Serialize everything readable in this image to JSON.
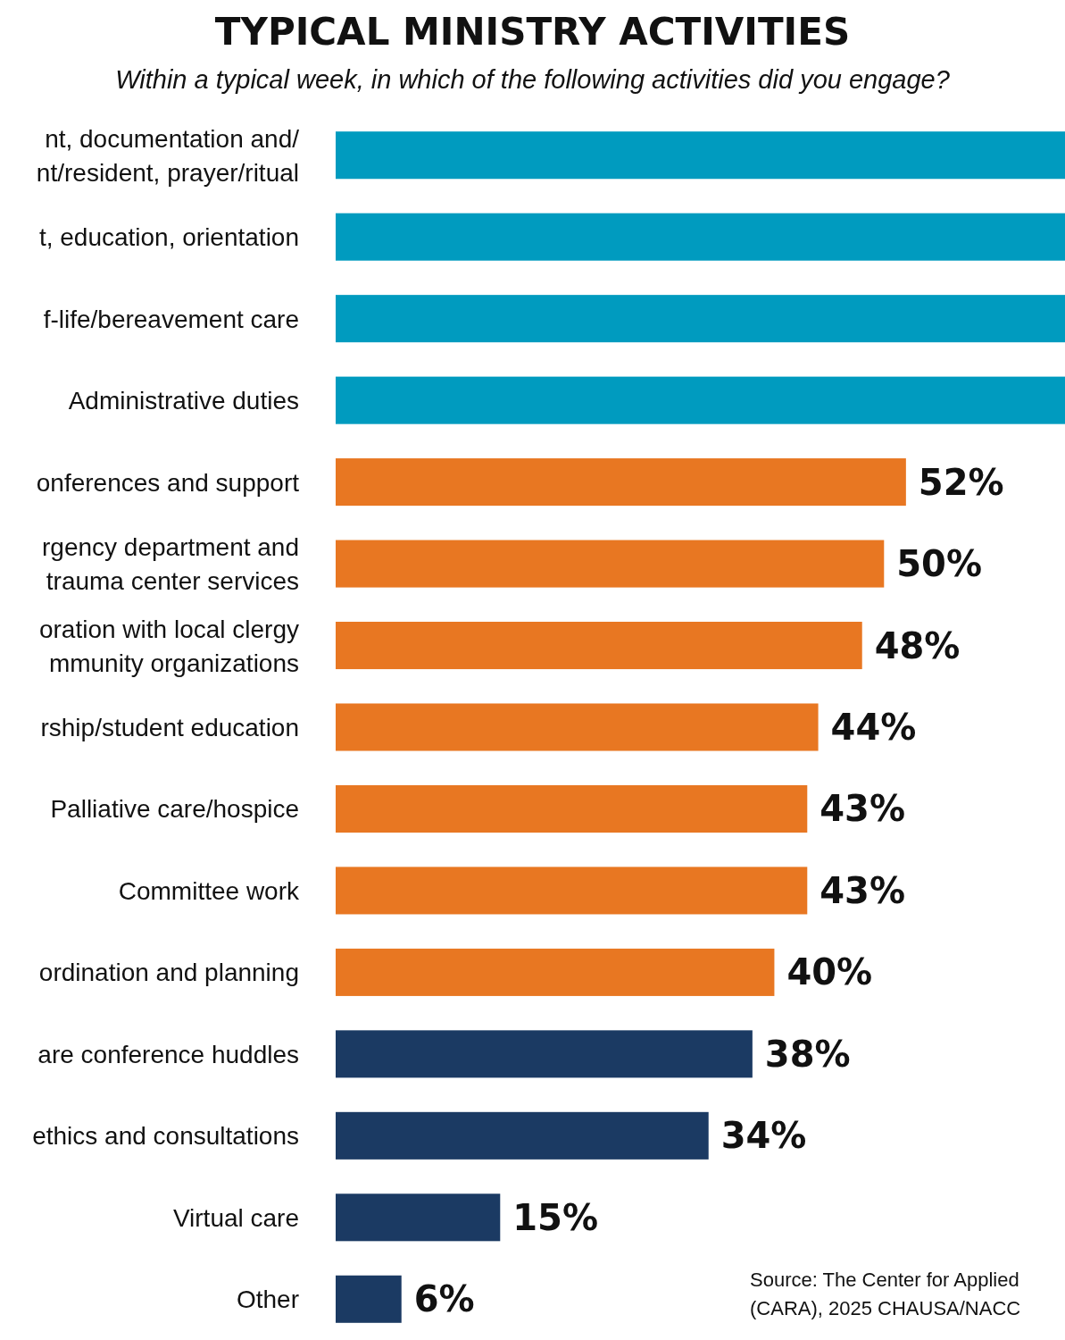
{
  "chart_data": {
    "type": "bar",
    "orientation": "horizontal",
    "title": "TYPICAL MINISTRY ACTIVITIES",
    "subtitle": "Within a typical week, in which of the following activities did you engage?",
    "categories": [
      "nt, documentation and/\nnt/resident, prayer/ritual",
      "t, education, orientation",
      "f-life/bereavement care",
      "Administrative duties",
      "onferences and support",
      "rgency department and\n trauma center services",
      "oration with local clergy\nmmunity organizations",
      "rship/student education",
      "Palliative care/hospice",
      "Committee work",
      "ordination and planning",
      "are conference huddles",
      "ethics and consultations",
      "Virtual care",
      "Other"
    ],
    "values": [
      66.5,
      66.5,
      66.5,
      66.5,
      52,
      50,
      48,
      44,
      43,
      43,
      40,
      38,
      34,
      15,
      6
    ],
    "value_labels": [
      null,
      null,
      null,
      null,
      "52%",
      "50%",
      "48%",
      "44%",
      "43%",
      "43%",
      "40%",
      "38%",
      "34%",
      "15%",
      "6%"
    ],
    "colors": [
      "#009bbf",
      "#009bbf",
      "#009bbf",
      "#009bbf",
      "#e87722",
      "#e87722",
      "#e87722",
      "#e87722",
      "#e87722",
      "#e87722",
      "#e87722",
      "#1b3a63",
      "#1b3a63",
      "#1b3a63",
      "#1b3a63"
    ],
    "xlim": [
      0,
      66.5
    ],
    "tick_labels": "y",
    "annotations": [
      "Source: The Center for Applied\n(CARA), 2025 CHAUSA/NACC"
    ]
  }
}
